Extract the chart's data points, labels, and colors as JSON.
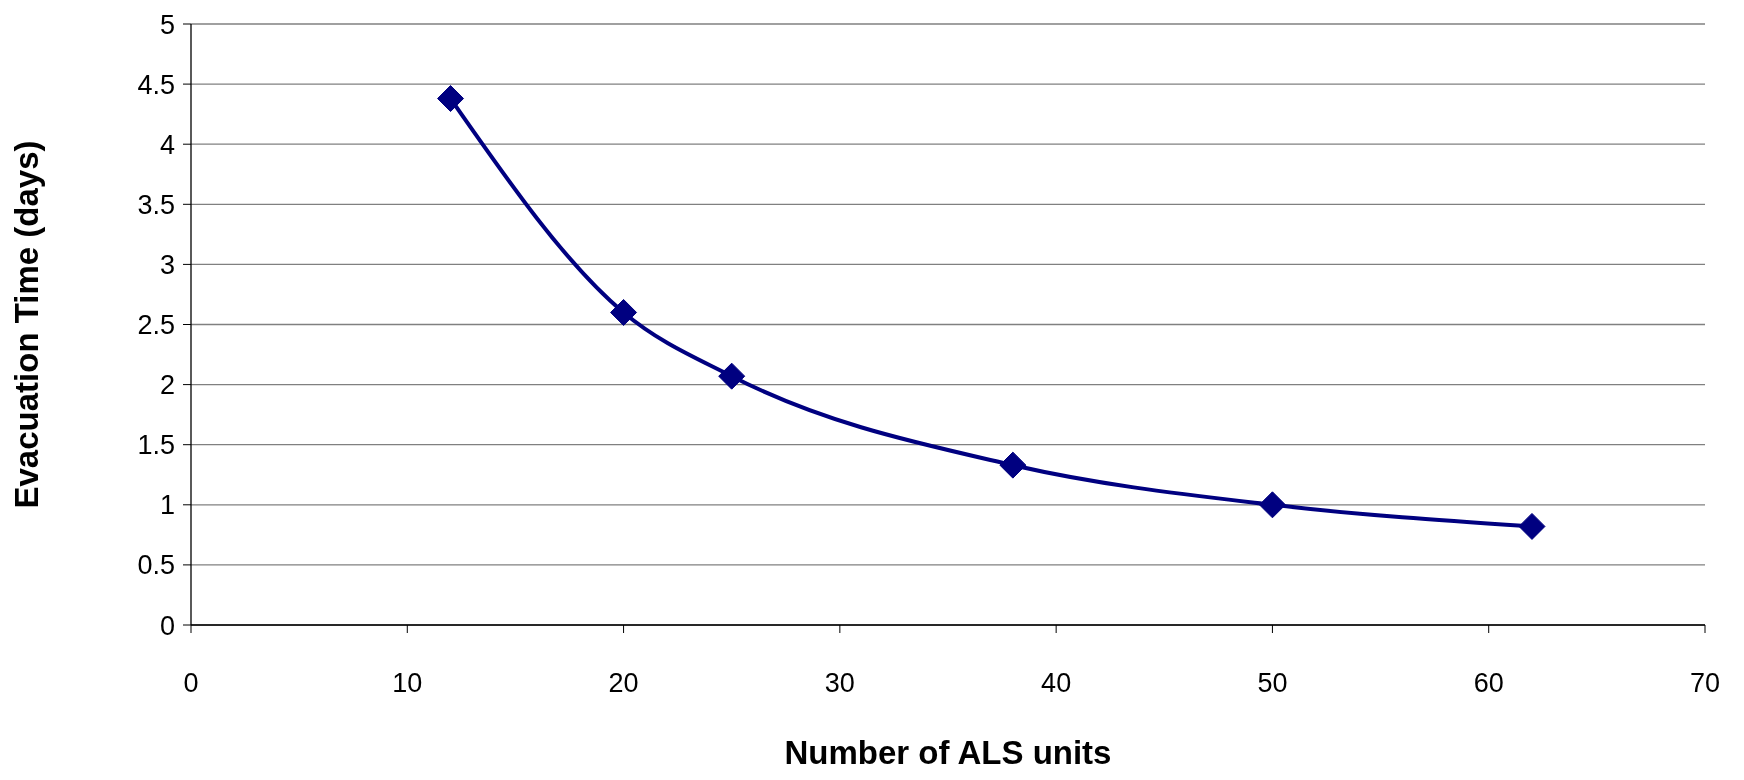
{
  "chart_data": {
    "type": "line",
    "xlabel": "Number of ALS units",
    "ylabel": "Evacuation Time (days)",
    "x": [
      12,
      20,
      25,
      38,
      50,
      62
    ],
    "series": [
      {
        "color": "#000080",
        "values": [
          4.38,
          2.6,
          2.07,
          1.33,
          1.0,
          0.82
        ]
      }
    ],
    "xlim": [
      0,
      70
    ],
    "xticks": [
      0,
      10,
      20,
      30,
      40,
      50,
      60,
      70
    ],
    "ylim": [
      0,
      5
    ],
    "yticks": [
      0,
      0.5,
      1,
      1.5,
      2,
      2.5,
      3,
      3.5,
      4,
      4.5,
      5
    ],
    "grid": "y",
    "marker": "diamond",
    "line_style": "solid"
  }
}
